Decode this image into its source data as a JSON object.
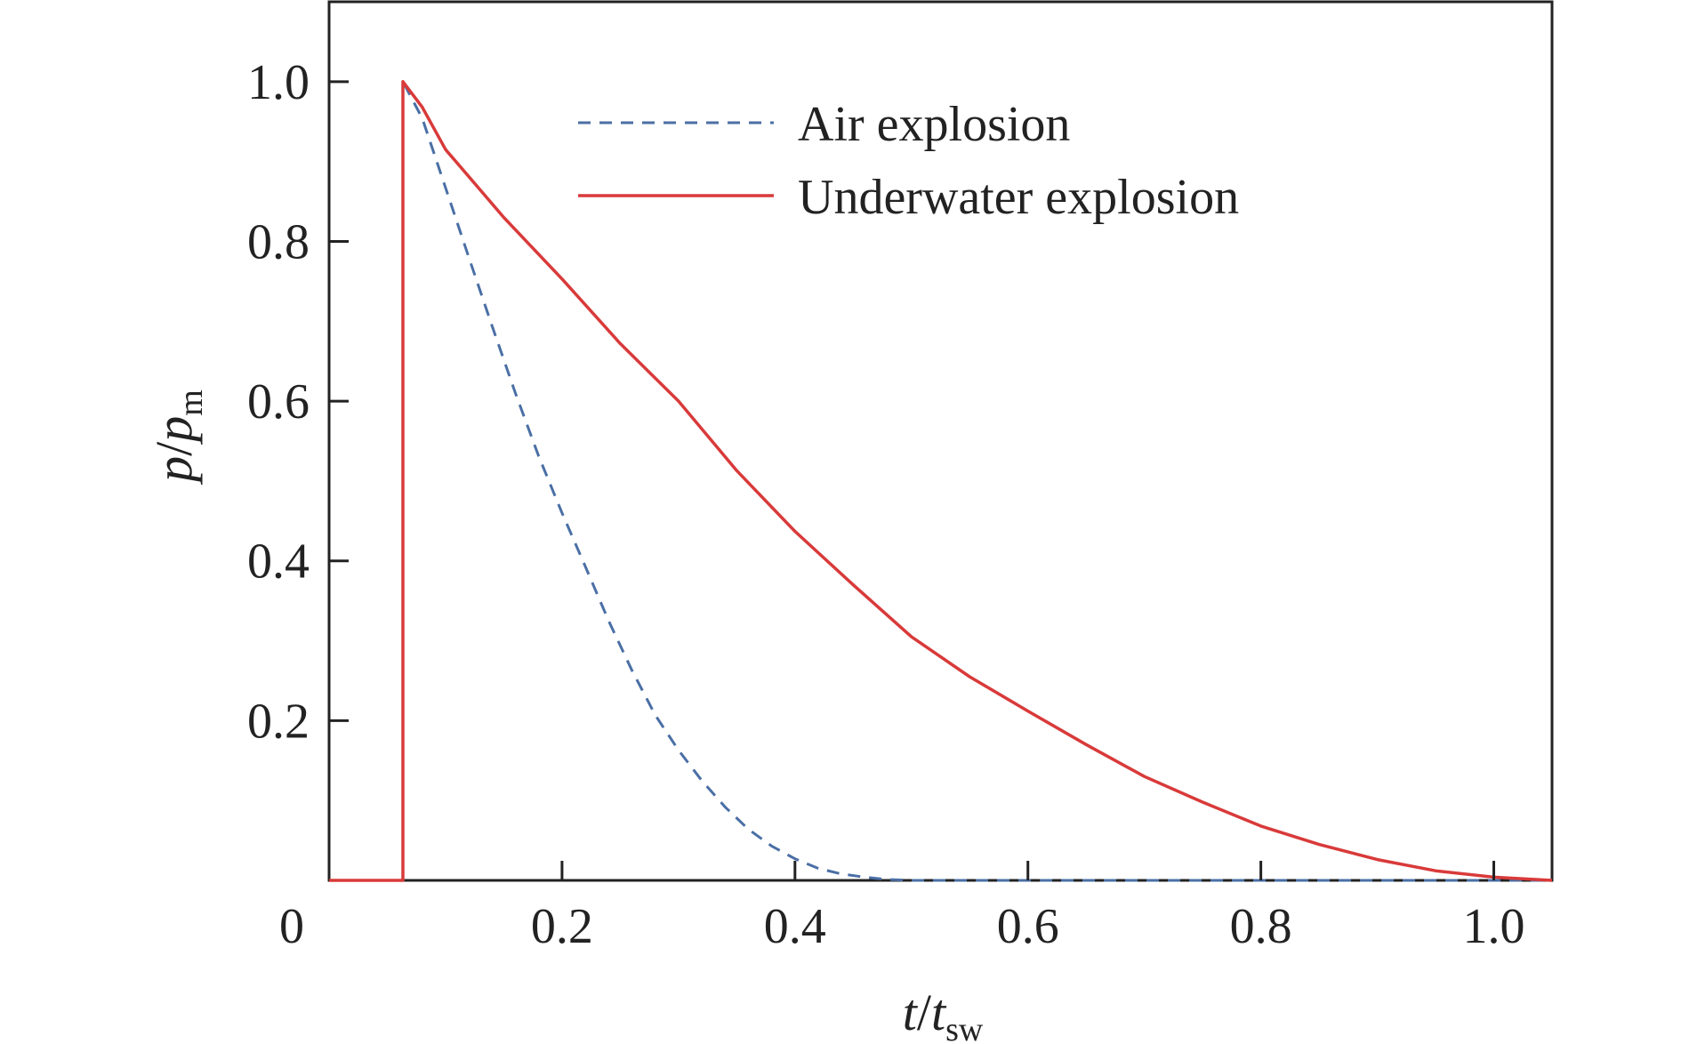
{
  "chart_data": {
    "type": "line",
    "x_axis": {
      "label_main": "t",
      "label_denominator": "t",
      "label_subscript": "sw",
      "range": [
        0,
        1.05
      ],
      "ticks": [
        0.2,
        0.4,
        0.6,
        0.8,
        1.0
      ],
      "tick_labels": [
        "0.2",
        "0.4",
        "0.6",
        "0.8",
        "1.0"
      ],
      "origin_label": "0"
    },
    "y_axis": {
      "label_main": "p",
      "label_denominator": "p",
      "label_subscript": "m",
      "range": [
        0,
        1.1
      ],
      "ticks": [
        0.2,
        0.4,
        0.6,
        0.8,
        1.0
      ],
      "tick_labels": [
        "0.2",
        "0.4",
        "0.6",
        "0.8",
        "1.0"
      ]
    },
    "legend": {
      "position": "top-center"
    },
    "grid": false,
    "series": [
      {
        "name": "Air explosion",
        "color": "#4a6fa5",
        "style": "dashed",
        "x": [
          0,
          0.0634,
          0.0634,
          0.08,
          0.1,
          0.12,
          0.14,
          0.16,
          0.18,
          0.2,
          0.22,
          0.24,
          0.26,
          0.28,
          0.3,
          0.32,
          0.34,
          0.36,
          0.38,
          0.4,
          0.42,
          0.44,
          0.46,
          0.48,
          0.5,
          0.52,
          0.6,
          0.7,
          0.8,
          0.9,
          1.0,
          1.05
        ],
        "y": [
          0,
          0,
          1.0,
          0.954,
          0.867,
          0.78,
          0.694,
          0.61,
          0.531,
          0.46,
          0.393,
          0.325,
          0.263,
          0.207,
          0.163,
          0.125,
          0.092,
          0.064,
          0.043,
          0.027,
          0.015,
          0.008,
          0.004,
          0.001,
          0.0,
          0.0,
          0.0,
          0.0,
          0.0,
          0.0,
          0.0,
          0.0
        ]
      },
      {
        "name": "Underwater explosion",
        "color": "#d93a3a",
        "style": "solid",
        "x": [
          0,
          0.0634,
          0.0634,
          0.08,
          0.1,
          0.15,
          0.2,
          0.25,
          0.3,
          0.35,
          0.4,
          0.45,
          0.5,
          0.55,
          0.6,
          0.65,
          0.7,
          0.75,
          0.8,
          0.85,
          0.9,
          0.95,
          1.0,
          1.05
        ],
        "y": [
          0,
          0,
          1.0,
          0.968,
          0.915,
          0.83,
          0.753,
          0.672,
          0.6,
          0.513,
          0.437,
          0.37,
          0.305,
          0.255,
          0.212,
          0.17,
          0.13,
          0.098,
          0.068,
          0.045,
          0.026,
          0.012,
          0.004,
          0.0
        ]
      }
    ]
  }
}
